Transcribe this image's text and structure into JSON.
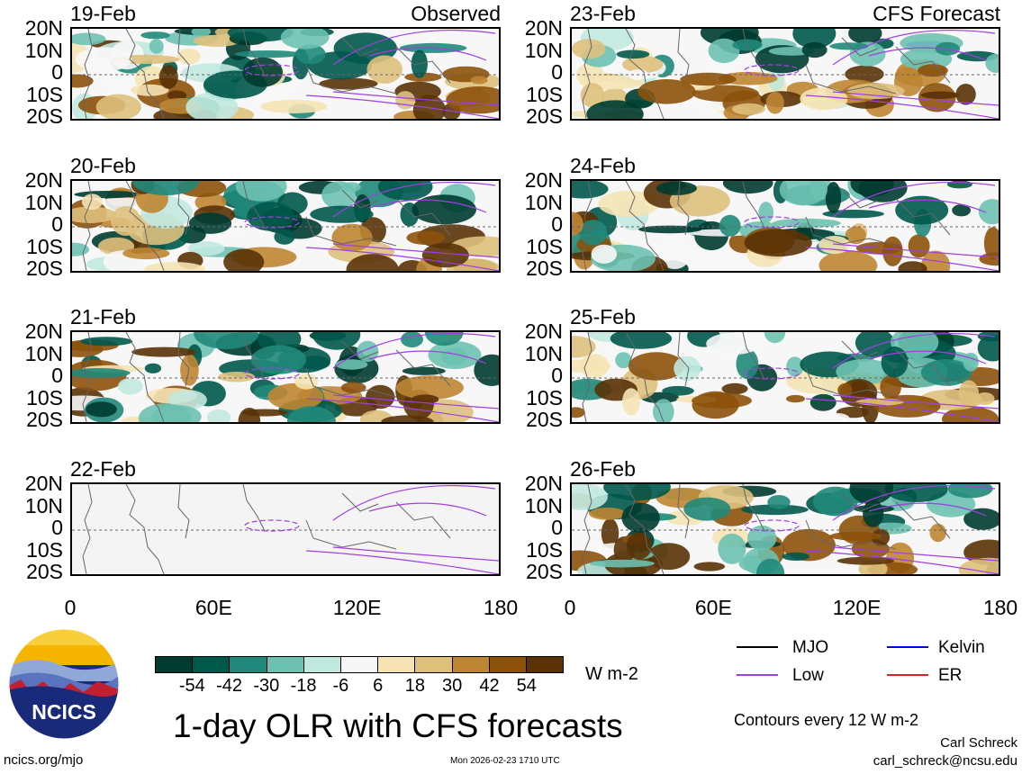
{
  "panels": {
    "left": [
      {
        "date": "19-Feb",
        "tag": "Observed"
      },
      {
        "date": "20-Feb",
        "tag": ""
      },
      {
        "date": "21-Feb",
        "tag": ""
      },
      {
        "date": "22-Feb",
        "tag": ""
      }
    ],
    "right": [
      {
        "date": "23-Feb",
        "tag": "CFS Forecast"
      },
      {
        "date": "24-Feb",
        "tag": ""
      },
      {
        "date": "25-Feb",
        "tag": ""
      },
      {
        "date": "26-Feb",
        "tag": ""
      }
    ]
  },
  "axes": {
    "lat_labels": [
      "20N",
      "10N",
      "0",
      "10S",
      "20S"
    ],
    "lon_labels": [
      "0",
      "60E",
      "120E",
      "180"
    ]
  },
  "colorbar": {
    "ticks": [
      "-54",
      "-42",
      "-30",
      "-18",
      "-6",
      "6",
      "18",
      "30",
      "42",
      "54"
    ],
    "colors": [
      "#003b30",
      "#00584b",
      "#20887a",
      "#6dc1b1",
      "#c1e8df",
      "#f7f7f7",
      "#f5e3b4",
      "#dec07d",
      "#be8533",
      "#8c510a",
      "#5a3205"
    ],
    "units": "W m-2"
  },
  "legend": {
    "items": [
      {
        "label": "MJO",
        "color": "#000000"
      },
      {
        "label": "Kelvin",
        "color": "#0000ee"
      },
      {
        "label": "Low",
        "color": "#a040e0"
      },
      {
        "label": "ER",
        "color": "#dd2020"
      }
    ],
    "contours_note": "Contours every 12 W m-2"
  },
  "title": "1-day OLR with CFS forecasts",
  "logo": {
    "text": "NCICS"
  },
  "footer": {
    "url": "ncics.org/mjo",
    "timestamp": "Mon 2026-02-23 1710 UTC",
    "author": "Carl Schreck",
    "email": "carl_schreck@ncsu.edu"
  }
}
